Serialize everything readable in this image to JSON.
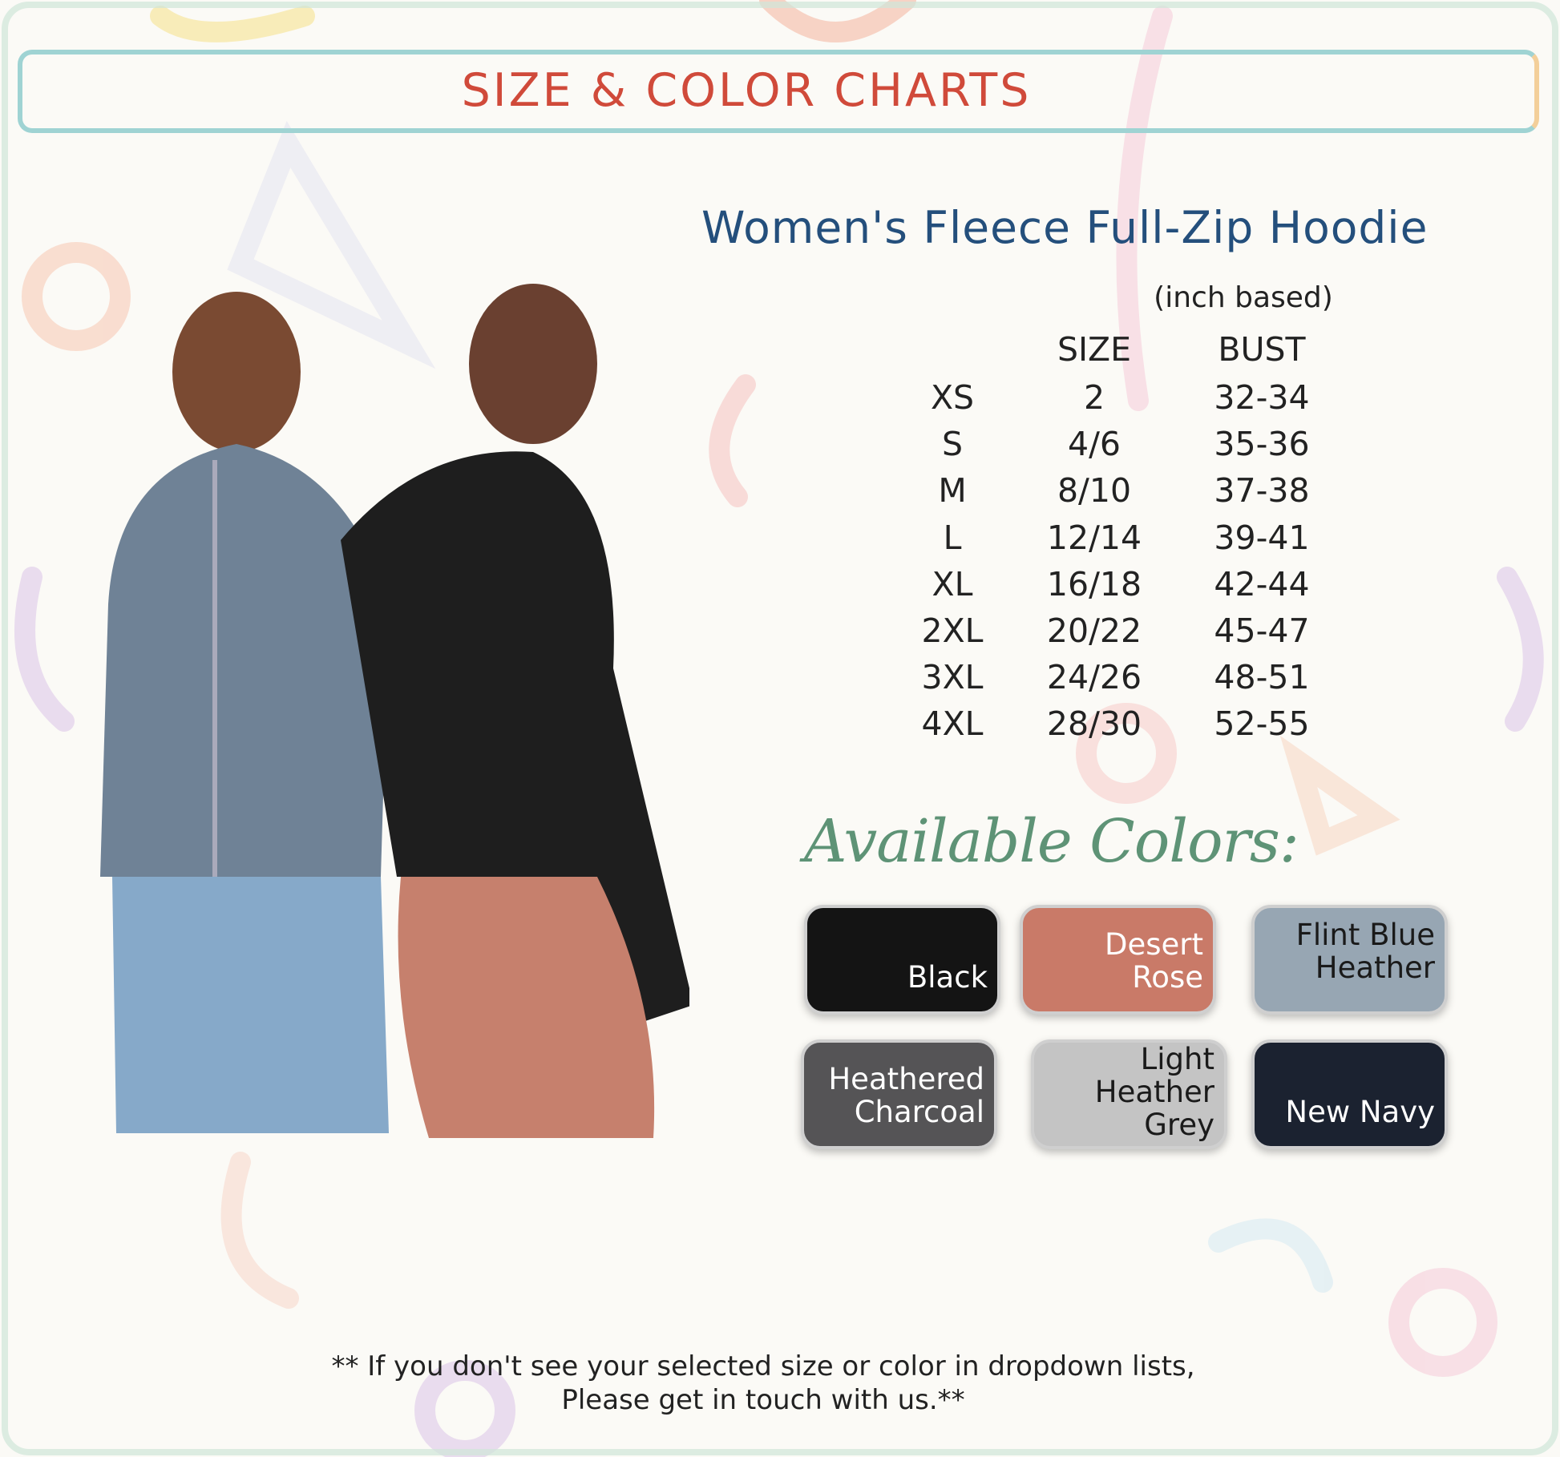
{
  "header": {
    "title": "SIZE & COLOR CHARTS"
  },
  "product": {
    "title": "Women's Fleece Full-Zip Hoodie",
    "unit_note": "(inch based)"
  },
  "size_table": {
    "columns": [
      "",
      "SIZE",
      "BUST"
    ],
    "rows": [
      [
        "XS",
        "2",
        "32-34"
      ],
      [
        "S",
        "4/6",
        "35-36"
      ],
      [
        "M",
        "8/10",
        "37-38"
      ],
      [
        "L",
        "12/14",
        "39-41"
      ],
      [
        "XL",
        "16/18",
        "42-44"
      ],
      [
        "2XL",
        "20/22",
        "45-47"
      ],
      [
        "3XL",
        "24/26",
        "48-51"
      ],
      [
        "4XL",
        "28/30",
        "52-55"
      ]
    ]
  },
  "colors": {
    "heading": "Available Colors:",
    "swatches": [
      {
        "label": "Black",
        "color": "#141414",
        "text_color": "#ffffff"
      },
      {
        "label": "Desert Rose",
        "color": "#c97a68",
        "text_color": "#ffffff"
      },
      {
        "label": "Flint Blue Heather",
        "color": "#97a6b3",
        "text_color": "#1a1a1a"
      },
      {
        "label": "Heathered Charcoal",
        "color": "#555456",
        "text_color": "#ffffff"
      },
      {
        "label": "Light Heather Grey",
        "color": "#c4c4c4",
        "text_color": "#1a1a1a"
      },
      {
        "label": "New Navy",
        "color": "#1b2230",
        "text_color": "#ffffff"
      }
    ]
  },
  "footer": {
    "line1": "** If you don't see your selected size or color in dropdown lists,",
    "line2": "Please get in touch with us.**"
  }
}
